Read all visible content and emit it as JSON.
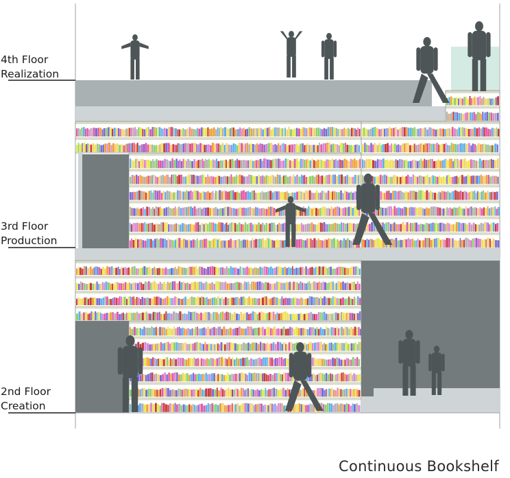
{
  "title": "Continuous Bookshelf",
  "floors": [
    {
      "level": "4th Floor",
      "function": "Realization"
    },
    {
      "level": "3rd Floor",
      "function": "Production"
    },
    {
      "level": "2nd Floor",
      "function": "Creation"
    }
  ],
  "colors": {
    "slab": "#a9b1b3",
    "slab_light": "#cfd5d6",
    "wall_dark": "#737b7d",
    "shelf_board": "#d9dcc9",
    "shelf_back": "#ffffff",
    "figure": "#4d5557",
    "glass": "#d4ebe4",
    "books": [
      "#e8e84a",
      "#e05aa8",
      "#7c6bd0",
      "#f0a03c",
      "#5fb0e8",
      "#b0b0b0",
      "#c83c3c",
      "#8cd070",
      "#f5d36b",
      "#d98ad0"
    ]
  },
  "icons": [
    "child-silhouette-icon",
    "adult-silhouette-icon",
    "bookshelf-icon"
  ]
}
